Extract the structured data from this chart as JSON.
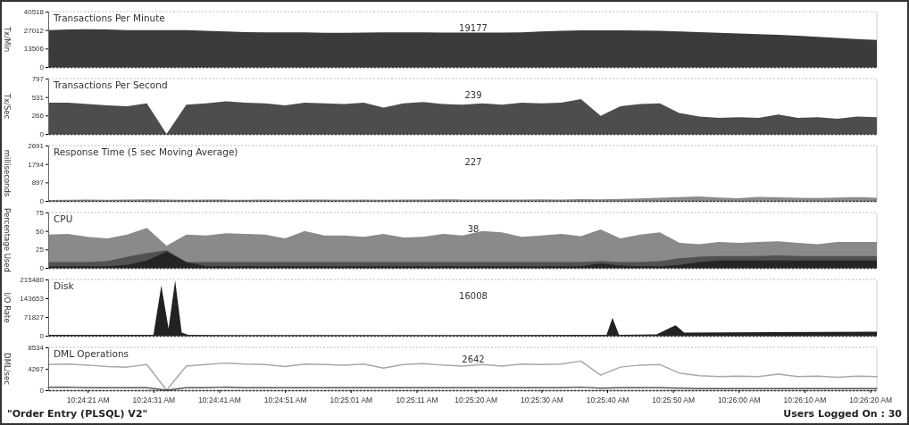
{
  "chart_data": [
    {
      "type": "area",
      "title": "Transactions Per Minute",
      "ylabel": "Tx/Min",
      "tick_labels": "y",
      "xlim": [
        10.404167,
        10.439167
      ],
      "ylim": [
        0,
        40518
      ],
      "yticks": [
        0,
        13506,
        27012,
        40518
      ],
      "annotations": [
        "19177"
      ],
      "x": [
        10.404167,
        10.405,
        10.405833,
        10.406667,
        10.4075,
        10.408333,
        10.409167,
        10.41,
        10.410833,
        10.411667,
        10.4125,
        10.413333,
        10.414167,
        10.415,
        10.415833,
        10.416667,
        10.4175,
        10.418333,
        10.419167,
        10.42,
        10.420833,
        10.421667,
        10.4225,
        10.423333,
        10.424167,
        10.425,
        10.425833,
        10.426667,
        10.4275,
        10.428333,
        10.429167,
        10.43,
        10.430833,
        10.431667,
        10.4325,
        10.433333,
        10.434167,
        10.435,
        10.435833,
        10.436667,
        10.4375,
        10.438333,
        10.439167
      ],
      "series": [
        {
          "color": "#3c3a3a",
          "values": [
            27000,
            27500,
            27600,
            27400,
            27000,
            27000,
            27000,
            27000,
            26500,
            26000,
            25500,
            25300,
            25300,
            25300,
            25000,
            25000,
            25200,
            25300,
            25300,
            25300,
            25200,
            25200,
            25200,
            25200,
            25400,
            26000,
            26500,
            26800,
            26800,
            26800,
            26600,
            26400,
            26000,
            25500,
            25000,
            24500,
            24000,
            23500,
            22800,
            22000,
            21200,
            20500,
            19700
          ]
        }
      ]
    },
    {
      "type": "area",
      "title": "Transactions Per Second",
      "ylabel": "Tx/Sec",
      "tick_labels": "y",
      "xlim": [
        10.404167,
        10.439167
      ],
      "ylim": [
        0,
        797
      ],
      "yticks": [
        0,
        266,
        531,
        797
      ],
      "annotations": [
        "239"
      ],
      "x": [
        10.404167,
        10.405,
        10.405833,
        10.406667,
        10.4075,
        10.408333,
        10.409167,
        10.41,
        10.410833,
        10.411667,
        10.4125,
        10.413333,
        10.414167,
        10.415,
        10.415833,
        10.416667,
        10.4175,
        10.418333,
        10.419167,
        10.42,
        10.420833,
        10.421667,
        10.4225,
        10.423333,
        10.424167,
        10.425,
        10.425833,
        10.426667,
        10.4275,
        10.428333,
        10.429167,
        10.43,
        10.430833,
        10.431667,
        10.4325,
        10.433333,
        10.434167,
        10.435,
        10.435833,
        10.436667,
        10.4375,
        10.438333,
        10.439167
      ],
      "series": [
        {
          "color": "#4e4c4c",
          "values": [
            450,
            450,
            430,
            410,
            400,
            440,
            0,
            420,
            440,
            470,
            450,
            440,
            410,
            450,
            440,
            430,
            450,
            380,
            440,
            460,
            430,
            420,
            440,
            420,
            450,
            440,
            450,
            500,
            260,
            400,
            430,
            440,
            300,
            250,
            230,
            240,
            230,
            280,
            230,
            240,
            220,
            250,
            240
          ]
        }
      ]
    },
    {
      "type": "area",
      "title": "Response Time (5 sec Moving Average)",
      "ylabel": "milliseconds",
      "tick_labels": "y",
      "xlim": [
        10.404167,
        10.439167
      ],
      "ylim": [
        0,
        2691
      ],
      "yticks": [
        0,
        897,
        1794,
        2691
      ],
      "annotations": [
        "227"
      ],
      "x": [
        10.404167,
        10.405,
        10.405833,
        10.406667,
        10.4075,
        10.408333,
        10.409167,
        10.41,
        10.410833,
        10.411667,
        10.4125,
        10.413333,
        10.414167,
        10.415,
        10.415833,
        10.416667,
        10.4175,
        10.418333,
        10.419167,
        10.42,
        10.420833,
        10.421667,
        10.4225,
        10.423333,
        10.424167,
        10.425,
        10.425833,
        10.426667,
        10.4275,
        10.428333,
        10.429167,
        10.43,
        10.430833,
        10.431667,
        10.4325,
        10.433333,
        10.434167,
        10.435,
        10.435833,
        10.436667,
        10.4375,
        10.438333,
        10.439167
      ],
      "series": [
        {
          "color": "#8c8c8c",
          "values": [
            40,
            50,
            60,
            50,
            70,
            80,
            60,
            50,
            70,
            60,
            50,
            60,
            50,
            60,
            70,
            50,
            60,
            50,
            60,
            70,
            80,
            70,
            60,
            70,
            60,
            80,
            70,
            90,
            80,
            100,
            120,
            150,
            180,
            220,
            160,
            130,
            200,
            170,
            150,
            140,
            160,
            180,
            150
          ]
        }
      ]
    },
    {
      "type": "area",
      "title": "CPU",
      "ylabel": "Percentage Used",
      "tick_labels": "y",
      "xlim": [
        10.404167,
        10.439167
      ],
      "ylim": [
        0,
        75
      ],
      "yticks": [
        0,
        25,
        50,
        75
      ],
      "annotations": [
        "38"
      ],
      "x": [
        10.404167,
        10.405,
        10.405833,
        10.406667,
        10.4075,
        10.408333,
        10.409167,
        10.41,
        10.410833,
        10.411667,
        10.4125,
        10.413333,
        10.414167,
        10.415,
        10.415833,
        10.416667,
        10.4175,
        10.418333,
        10.419167,
        10.42,
        10.420833,
        10.421667,
        10.4225,
        10.423333,
        10.424167,
        10.425,
        10.425833,
        10.426667,
        10.4275,
        10.428333,
        10.429167,
        10.43,
        10.430833,
        10.431667,
        10.4325,
        10.433333,
        10.434167,
        10.435,
        10.435833,
        10.436667,
        10.4375,
        10.438333,
        10.439167
      ],
      "series": [
        {
          "color": "#8a8a8a",
          "values": [
            45,
            46,
            42,
            40,
            45,
            54,
            30,
            45,
            44,
            47,
            46,
            45,
            40,
            50,
            44,
            44,
            42,
            46,
            41,
            42,
            46,
            44,
            50,
            48,
            42,
            44,
            46,
            43,
            52,
            40,
            45,
            48,
            34,
            32,
            35,
            34,
            35,
            36,
            34,
            32,
            35,
            35,
            35
          ]
        },
        {
          "color": "#525050",
          "values": [
            8,
            8,
            8,
            9,
            15,
            20,
            24,
            8,
            8,
            8,
            8,
            8,
            8,
            8,
            8,
            8,
            8,
            8,
            8,
            8,
            8,
            8,
            8,
            8,
            8,
            8,
            8,
            8,
            9,
            8,
            8,
            9,
            13,
            15,
            16,
            16,
            16,
            17,
            16,
            16,
            16,
            16,
            16
          ]
        },
        {
          "color": "#262424",
          "values": [
            2,
            2,
            2,
            2,
            4,
            10,
            22,
            8,
            2,
            2,
            2,
            2,
            2,
            2,
            2,
            2,
            2,
            2,
            2,
            2,
            2,
            2,
            2,
            2,
            2,
            2,
            2,
            2,
            6,
            3,
            2,
            2,
            4,
            8,
            10,
            10,
            10,
            10,
            10,
            10,
            10,
            10,
            10
          ]
        }
      ]
    },
    {
      "type": "area",
      "title": "Disk",
      "ylabel": "I/O Rate",
      "tick_labels": "y",
      "xlim": [
        10.404167,
        10.439167
      ],
      "ylim": [
        0,
        215480
      ],
      "yticks": [
        0,
        71827,
        143653,
        215480
      ],
      "annotations": [
        "16008"
      ],
      "series": [
        {
          "color": "#222222",
          "x": [
            10.404167,
            10.408611,
            10.408944,
            10.40925,
            10.409528,
            10.409806,
            10.410083,
            10.422222,
            10.42775,
            10.428,
            10.428278,
            10.429861,
            10.430667,
            10.431028,
            10.434722,
            10.439167
          ],
          "values": [
            3000,
            3000,
            192000,
            27000,
            212000,
            12000,
            3000,
            2500,
            3000,
            68000,
            3000,
            5000,
            40000,
            12000,
            14000,
            15000
          ]
        }
      ]
    },
    {
      "type": "line",
      "title": "DML Operations",
      "ylabel": "DML/sec",
      "xlim": [
        10.404167,
        10.439167
      ],
      "ylim": [
        0,
        8534
      ],
      "yticks": [
        0,
        4267,
        8534
      ],
      "xticks": [
        {
          "value": 10.405833,
          "label": "10:24:21 AM"
        },
        {
          "value": 10.408611,
          "label": "10:24:31 AM"
        },
        {
          "value": 10.411389,
          "label": "10:24:41 AM"
        },
        {
          "value": 10.414167,
          "label": "10:24:51 AM"
        },
        {
          "value": 10.416944,
          "label": "10:25:01 AM"
        },
        {
          "value": 10.419722,
          "label": "10:25:11 AM"
        },
        {
          "value": 10.422222,
          "label": "10:25:20 AM"
        },
        {
          "value": 10.425,
          "label": "10:25:30 AM"
        },
        {
          "value": 10.427778,
          "label": "10:25:40 AM"
        },
        {
          "value": 10.430556,
          "label": "10:25:50 AM"
        },
        {
          "value": 10.433333,
          "label": "10:26:00 AM"
        },
        {
          "value": 10.436111,
          "label": "10:26:10 AM"
        },
        {
          "value": 10.438889,
          "label": "10:26:20 AM"
        }
      ],
      "annotations": [
        "2642",
        "\"Order Entry (PLSQL) V2\"",
        "Users Logged On : 30"
      ],
      "x": [
        10.404167,
        10.405,
        10.405833,
        10.406667,
        10.4075,
        10.408333,
        10.409167,
        10.41,
        10.410833,
        10.411667,
        10.4125,
        10.413333,
        10.414167,
        10.415,
        10.415833,
        10.416667,
        10.4175,
        10.418333,
        10.419167,
        10.42,
        10.420833,
        10.421667,
        10.4225,
        10.423333,
        10.424167,
        10.425,
        10.425833,
        10.426667,
        10.4275,
        10.428333,
        10.429167,
        10.43,
        10.430833,
        10.431667,
        10.4325,
        10.433333,
        10.434167,
        10.435,
        10.435833,
        10.436667,
        10.4375,
        10.438333,
        10.439167
      ],
      "series": [
        {
          "color": "#a8a8a8",
          "values": [
            5100,
            5200,
            5000,
            4700,
            4600,
            5100,
            0,
            4800,
            5100,
            5400,
            5200,
            5100,
            4700,
            5200,
            5100,
            5000,
            5200,
            4400,
            5100,
            5300,
            5000,
            4800,
            5100,
            4800,
            5200,
            5100,
            5200,
            5800,
            3000,
            4600,
            5000,
            5100,
            3400,
            2900,
            2700,
            2800,
            2700,
            3200,
            2700,
            2800,
            2600,
            2800,
            2700
          ]
        },
        {
          "color": "#555555",
          "values": [
            600,
            600,
            500,
            500,
            500,
            500,
            0,
            500,
            500,
            600,
            500,
            500,
            500,
            500,
            500,
            500,
            500,
            500,
            500,
            500,
            500,
            500,
            500,
            500,
            500,
            500,
            500,
            600,
            400,
            500,
            500,
            500,
            400,
            300,
            300,
            300,
            300,
            300,
            300,
            300,
            300,
            300,
            300
          ]
        }
      ]
    }
  ]
}
